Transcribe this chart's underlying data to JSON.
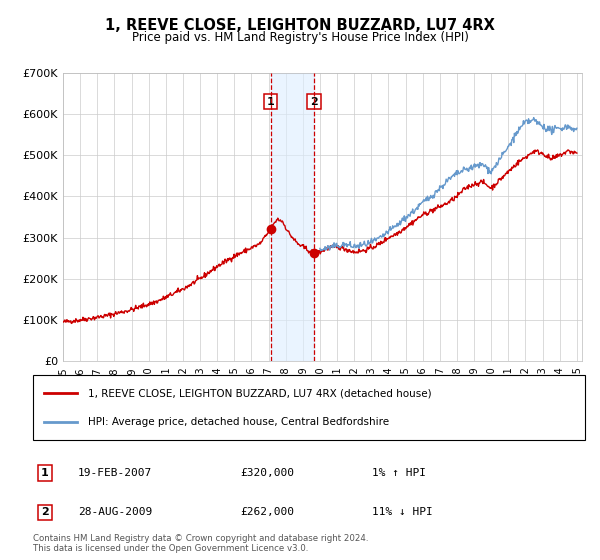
{
  "title": "1, REEVE CLOSE, LEIGHTON BUZZARD, LU7 4RX",
  "subtitle": "Price paid vs. HM Land Registry's House Price Index (HPI)",
  "background_color": "#ffffff",
  "plot_bg_color": "#ffffff",
  "grid_color": "#cccccc",
  "marker1_date": 2007.13,
  "marker1_value": 320000,
  "marker2_date": 2009.65,
  "marker2_value": 262000,
  "vline1_date": 2007.13,
  "vline2_date": 2009.65,
  "shade_start": 2007.13,
  "shade_end": 2009.65,
  "ylim": [
    0,
    700000
  ],
  "xlim_start": 1995.0,
  "xlim_end": 2025.3,
  "yticks": [
    0,
    100000,
    200000,
    300000,
    400000,
    500000,
    600000,
    700000
  ],
  "ytick_labels": [
    "£0",
    "£100K",
    "£200K",
    "£300K",
    "£400K",
    "£500K",
    "£600K",
    "£700K"
  ],
  "xticks": [
    1995,
    1996,
    1997,
    1998,
    1999,
    2000,
    2001,
    2002,
    2003,
    2004,
    2005,
    2006,
    2007,
    2008,
    2009,
    2010,
    2011,
    2012,
    2013,
    2014,
    2015,
    2016,
    2017,
    2018,
    2019,
    2020,
    2021,
    2022,
    2023,
    2024,
    2025
  ],
  "red_line_color": "#cc0000",
  "blue_line_color": "#6699cc",
  "marker_color": "#cc0000",
  "vline_color": "#cc0000",
  "shade_color": "#ddeeff",
  "label_box_color": "#cc0000",
  "footnote": "Contains HM Land Registry data © Crown copyright and database right 2024.\nThis data is licensed under the Open Government Licence v3.0.",
  "legend_line1": "1, REEVE CLOSE, LEIGHTON BUZZARD, LU7 4RX (detached house)",
  "legend_line2": "HPI: Average price, detached house, Central Bedfordshire",
  "table_row1": [
    "1",
    "19-FEB-2007",
    "£320,000",
    "1% ↑ HPI"
  ],
  "table_row2": [
    "2",
    "28-AUG-2009",
    "£262,000",
    "11% ↓ HPI"
  ]
}
